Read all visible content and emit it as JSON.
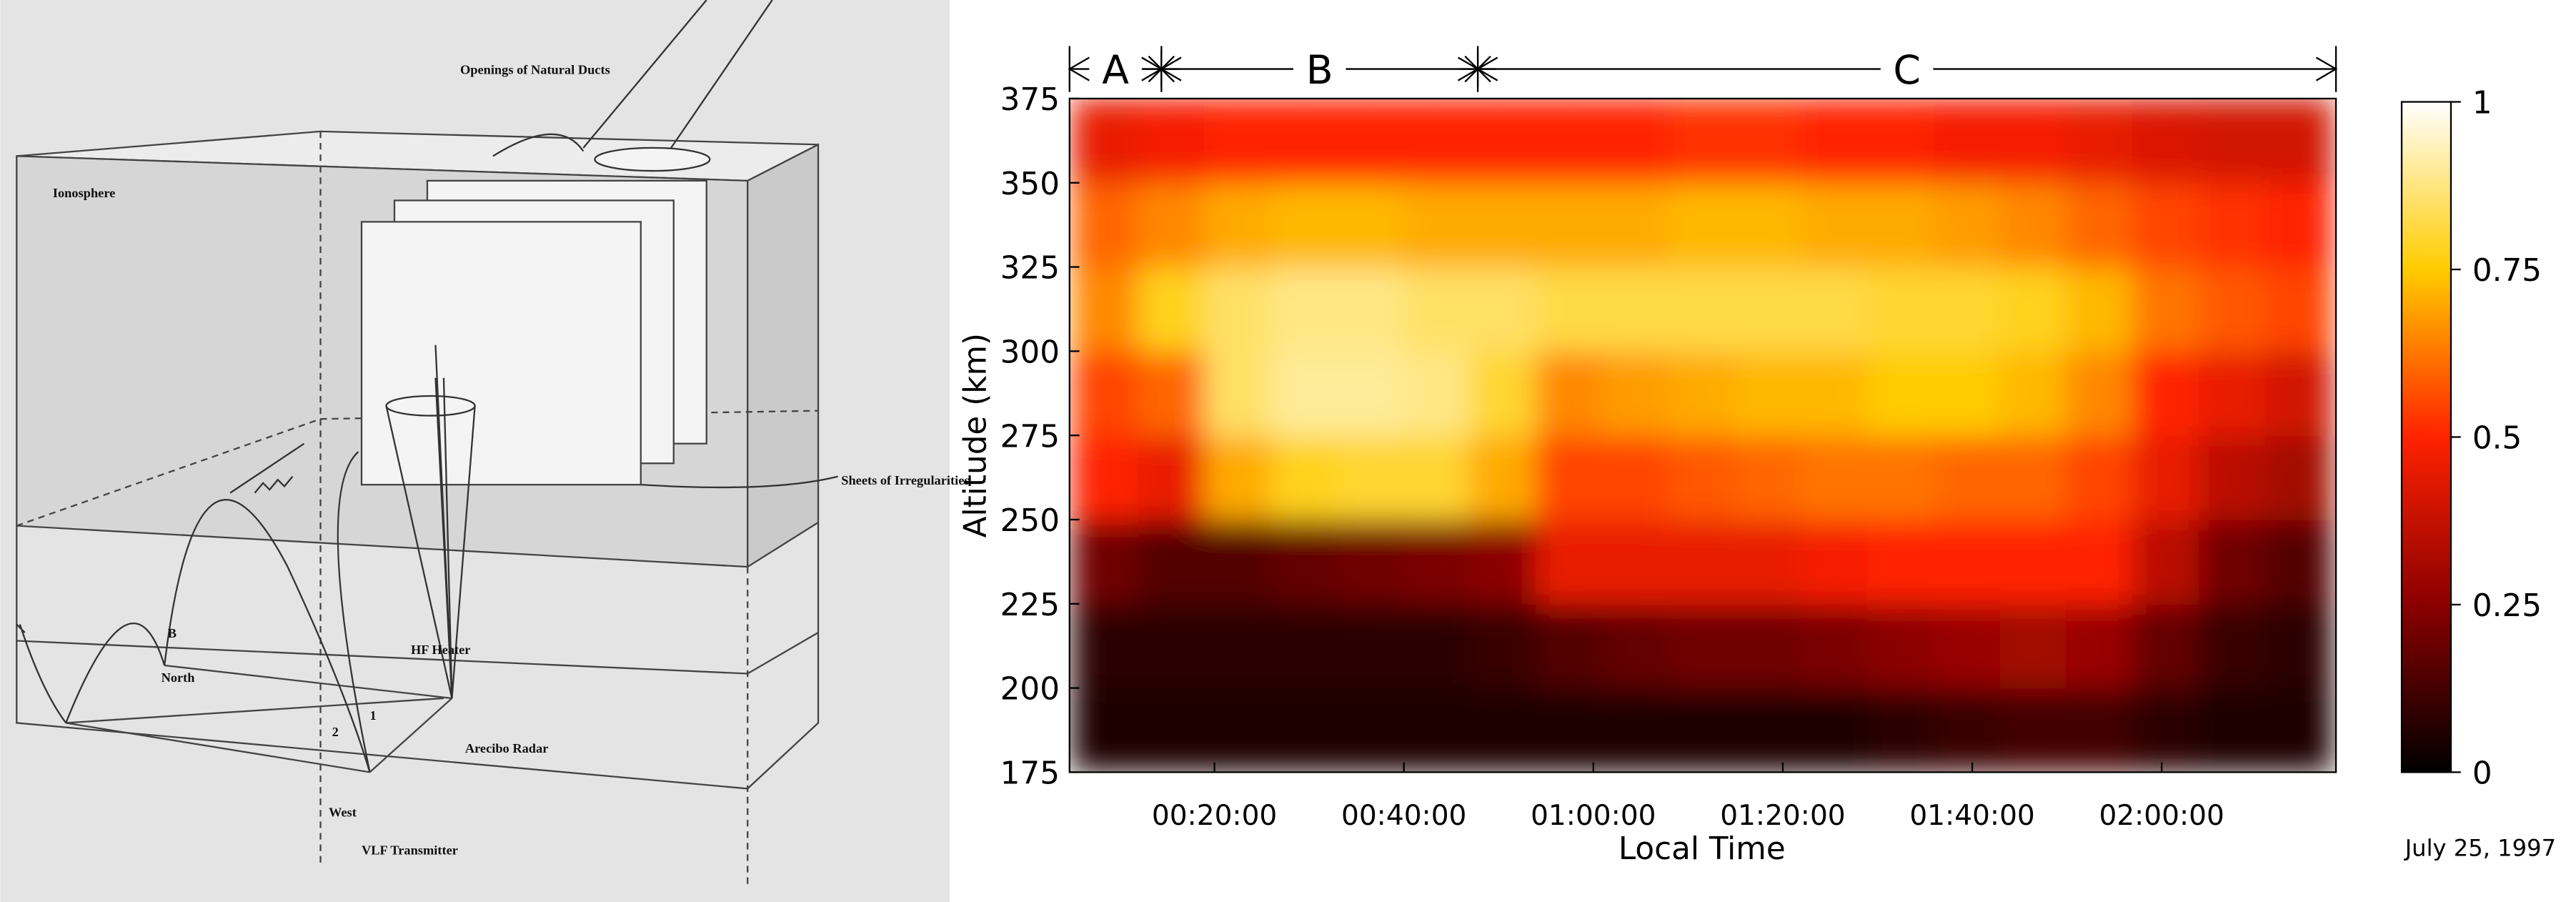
{
  "diagram": {
    "ducts": "Openings of Natural Ducts",
    "ionosphere": "Ionosphere",
    "sheets": "Sheets of Irregularities",
    "b": "B",
    "north": "North",
    "heater": "HF Heater",
    "one": "1",
    "two": "2",
    "radar": "Arecibo Radar",
    "west": "West",
    "vlf": "VLF Transmitter"
  },
  "chart_data": {
    "type": "heatmap",
    "ylabel": "Altitude (km)",
    "xlabel": "Local Time",
    "date": "July 25, 1997",
    "xlim": [
      4.7,
      138.4
    ],
    "ylim": [
      175,
      375
    ],
    "xticks": [
      {
        "value": 20,
        "label": "00:20:00"
      },
      {
        "value": 40,
        "label": "00:40:00"
      },
      {
        "value": 60,
        "label": "01:00:00"
      },
      {
        "value": 80,
        "label": "01:20:00"
      },
      {
        "value": 100,
        "label": "01:40:00"
      },
      {
        "value": 120,
        "label": "02:00:00"
      }
    ],
    "yticks": [
      175,
      200,
      225,
      250,
      275,
      300,
      325,
      350,
      375
    ],
    "regions": [
      {
        "label": "A",
        "start": 4.7,
        "end": 14.4
      },
      {
        "label": "B",
        "start": 14.4,
        "end": 47.8
      },
      {
        "label": "C",
        "start": 47.8,
        "end": 138.4
      }
    ],
    "x_bins": [
      5,
      12,
      19,
      26,
      33,
      40,
      47,
      54,
      61,
      68,
      75,
      82,
      89,
      96,
      103,
      110,
      117,
      124,
      131,
      138
    ],
    "y_bins": [
      175,
      200,
      225,
      250,
      275,
      300,
      325,
      350,
      375
    ],
    "z": [
      [
        0.05,
        0.05,
        0.05,
        0.05,
        0.05,
        0.05,
        0.05,
        0.05,
        0.05,
        0.05,
        0.05,
        0.05,
        0.08,
        0.1,
        0.12,
        0.12,
        0.08,
        0.05,
        0.05
      ],
      [
        0.08,
        0.08,
        0.08,
        0.08,
        0.08,
        0.08,
        0.1,
        0.15,
        0.18,
        0.2,
        0.2,
        0.22,
        0.25,
        0.28,
        0.3,
        0.28,
        0.18,
        0.1,
        0.08
      ],
      [
        0.2,
        0.15,
        0.15,
        0.18,
        0.2,
        0.22,
        0.25,
        0.45,
        0.45,
        0.45,
        0.45,
        0.48,
        0.5,
        0.5,
        0.5,
        0.5,
        0.35,
        0.2,
        0.15
      ],
      [
        0.5,
        0.45,
        0.7,
        0.78,
        0.8,
        0.8,
        0.7,
        0.55,
        0.55,
        0.58,
        0.6,
        0.62,
        0.62,
        0.6,
        0.6,
        0.55,
        0.45,
        0.35,
        0.3
      ],
      [
        0.55,
        0.6,
        0.85,
        0.9,
        0.9,
        0.88,
        0.8,
        0.65,
        0.68,
        0.7,
        0.72,
        0.72,
        0.75,
        0.75,
        0.72,
        0.65,
        0.5,
        0.45,
        0.4
      ],
      [
        0.65,
        0.78,
        0.85,
        0.88,
        0.88,
        0.85,
        0.85,
        0.82,
        0.82,
        0.82,
        0.82,
        0.82,
        0.8,
        0.8,
        0.78,
        0.72,
        0.62,
        0.58,
        0.55
      ],
      [
        0.6,
        0.65,
        0.7,
        0.72,
        0.72,
        0.7,
        0.7,
        0.7,
        0.7,
        0.72,
        0.72,
        0.7,
        0.7,
        0.68,
        0.65,
        0.6,
        0.55,
        0.52,
        0.5
      ],
      [
        0.45,
        0.48,
        0.5,
        0.5,
        0.5,
        0.5,
        0.5,
        0.5,
        0.5,
        0.52,
        0.52,
        0.5,
        0.5,
        0.48,
        0.48,
        0.45,
        0.42,
        0.4,
        0.4
      ]
    ],
    "colormap": [
      "#000000",
      "#8b0000",
      "#ff2200",
      "#ffcc00",
      "#ffffff"
    ],
    "clim": [
      0,
      1
    ],
    "cticks": [
      0,
      0.25,
      0.5,
      0.75,
      1
    ]
  }
}
